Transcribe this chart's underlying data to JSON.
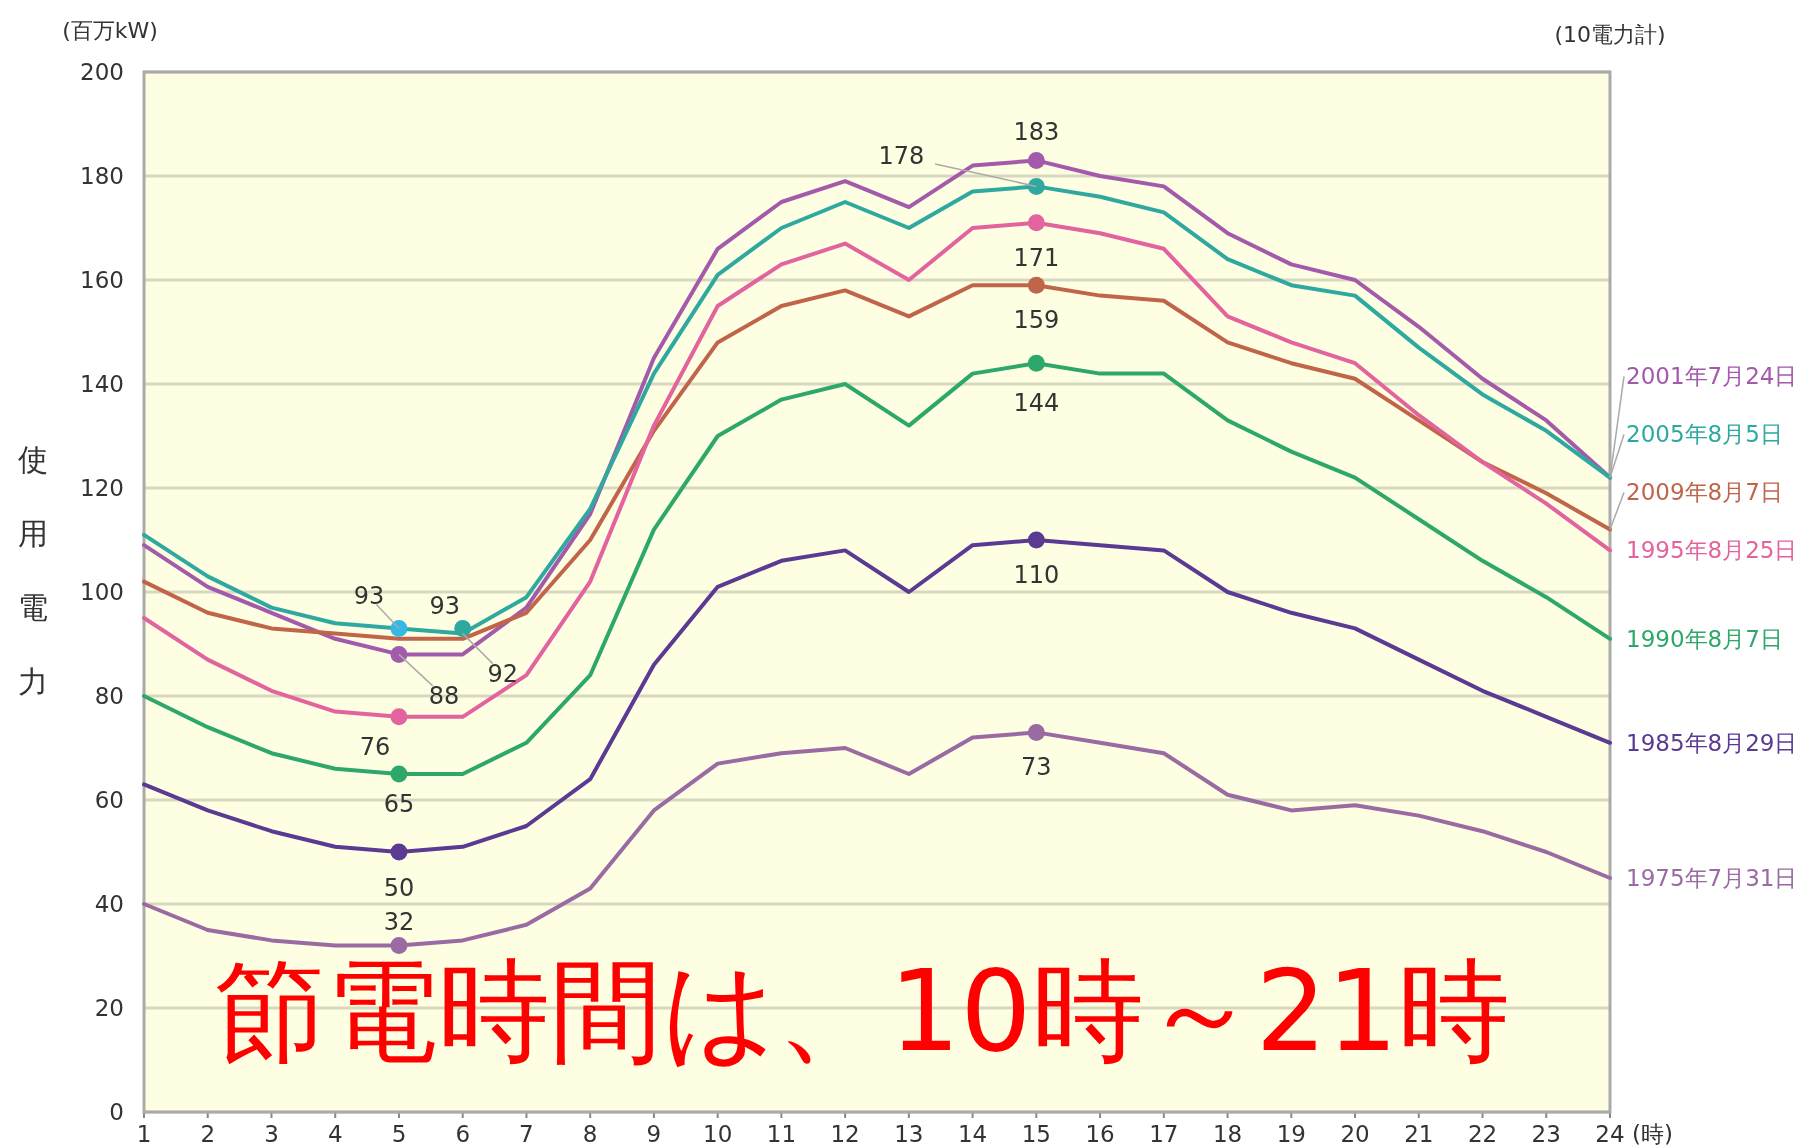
{
  "chart_data": {
    "type": "line",
    "ylabel": "使用電力",
    "xlabel": "(時)",
    "subtitle": "(百万kW)",
    "x": [
      1,
      2,
      3,
      4,
      5,
      6,
      7,
      8,
      9,
      10,
      11,
      12,
      13,
      14,
      15,
      16,
      17,
      18,
      19,
      20,
      21,
      22,
      23,
      24
    ],
    "xlim": [
      1,
      24
    ],
    "xticks": [
      1,
      2,
      3,
      4,
      5,
      6,
      7,
      8,
      9,
      10,
      11,
      12,
      13,
      14,
      15,
      16,
      17,
      18,
      19,
      20,
      21,
      22,
      23,
      24
    ],
    "ylim": [
      0,
      200
    ],
    "yticks": [
      0,
      20,
      40,
      60,
      80,
      100,
      120,
      140,
      160,
      180,
      200
    ],
    "grid": "y",
    "marker": "none",
    "line_style": "solid",
    "series": [
      {
        "name": "2001年7月24日",
        "color": "#a35aab",
        "values": [
          109,
          101,
          96,
          91,
          88,
          88,
          97,
          115,
          145,
          166,
          175,
          179,
          174,
          182,
          183,
          180,
          178,
          169,
          163,
          160,
          151,
          141,
          133,
          122
        ]
      },
      {
        "name": "2005年8月5日",
        "color": "#2fa9a0",
        "values": [
          111,
          103,
          97,
          94,
          93,
          92,
          99,
          116,
          142,
          161,
          170,
          175,
          170,
          177,
          178,
          176,
          173,
          164,
          159,
          157,
          147,
          138,
          131,
          122
        ]
      },
      {
        "name": "2009年8月7日",
        "color": "#c0654a",
        "values": [
          102,
          96,
          93,
          92,
          91,
          91,
          96,
          110,
          131,
          148,
          155,
          158,
          153,
          159,
          159,
          157,
          156,
          148,
          144,
          141,
          133,
          125,
          119,
          112
        ]
      },
      {
        "name": "1995年8月25日",
        "color": "#e2639e",
        "values": [
          95,
          87,
          81,
          77,
          76,
          76,
          84,
          102,
          132,
          155,
          163,
          167,
          160,
          170,
          171,
          169,
          166,
          153,
          148,
          144,
          134,
          125,
          117,
          108
        ]
      },
      {
        "name": "1990年8月7日",
        "color": "#2ea86a",
        "values": [
          80,
          74,
          69,
          66,
          65,
          65,
          71,
          84,
          112,
          130,
          137,
          140,
          132,
          142,
          144,
          142,
          142,
          133,
          127,
          122,
          114,
          106,
          99,
          91
        ]
      },
      {
        "name": "1985年8月29日",
        "color": "#5a3a92",
        "values": [
          63,
          58,
          54,
          51,
          50,
          51,
          55,
          64,
          86,
          101,
          106,
          108,
          100,
          109,
          110,
          109,
          108,
          100,
          96,
          93,
          87,
          81,
          76,
          71
        ]
      },
      {
        "name": "1975年7月31日",
        "color": "#9a6aa2",
        "values": [
          40,
          35,
          33,
          32,
          32,
          33,
          36,
          43,
          58,
          67,
          69,
          70,
          65,
          72,
          73,
          71,
          69,
          61,
          58,
          59,
          57,
          54,
          50,
          45
        ]
      },
      {
        "type": "scatter",
        "marker": "circle",
        "x": [
          5,
          6,
          5,
          5,
          5,
          5,
          5,
          15,
          15,
          15,
          15,
          15,
          15,
          15
        ],
        "values": [
          93,
          93,
          88,
          76,
          65,
          50,
          32,
          183,
          178,
          171,
          159,
          144,
          110,
          73
        ],
        "colors": [
          "#35b8e6",
          "#2fa9a0",
          "#a35aab",
          "#e2639e",
          "#2ea86a",
          "#5a3a92",
          "#9a6aa2",
          "#a35aab",
          "#2fa9a0",
          "#e2639e",
          "#c0654a",
          "#2ea86a",
          "#5a3a92",
          "#9a6aa2"
        ]
      }
    ],
    "annotations": [
      "(10電力計)",
      "節電時間は、10時～21時",
      {
        "text": "93",
        "x": 5,
        "y": 93
      },
      {
        "text": "93",
        "x": 6,
        "y": 93
      },
      {
        "text": "92",
        "x": 6,
        "y": 92
      },
      {
        "text": "88",
        "x": 5,
        "y": 88
      },
      {
        "text": "76",
        "x": 5,
        "y": 76
      },
      {
        "text": "65",
        "x": 5,
        "y": 65
      },
      {
        "text": "50",
        "x": 5,
        "y": 50
      },
      {
        "text": "32",
        "x": 5,
        "y": 32
      },
      {
        "text": "183",
        "x": 15,
        "y": 183
      },
      {
        "text": "178",
        "x": 15,
        "y": 178
      },
      {
        "text": "171",
        "x": 15,
        "y": 171
      },
      {
        "text": "159",
        "x": 15,
        "y": 159
      },
      {
        "text": "144",
        "x": 15,
        "y": 144
      },
      {
        "text": "110",
        "x": 15,
        "y": 110
      },
      {
        "text": "73",
        "x": 15,
        "y": 73
      }
    ]
  }
}
